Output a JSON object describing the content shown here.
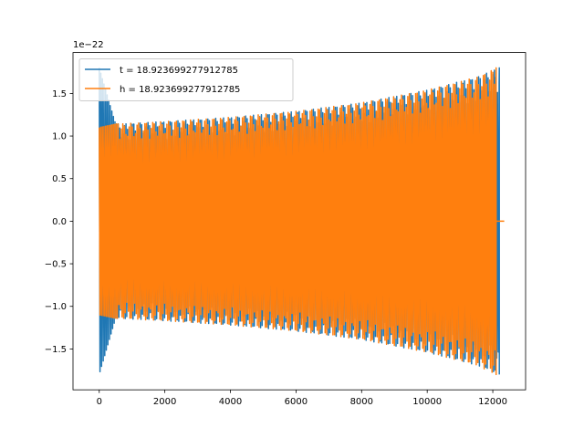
{
  "chart_data": {
    "type": "line",
    "title": "",
    "xlabel": "",
    "ylabel": "",
    "offset_label": "1e−22",
    "xlim": [
      -800,
      13000
    ],
    "ylim": [
      -1.98,
      1.98
    ],
    "xticks": [
      0,
      2000,
      4000,
      6000,
      8000,
      10000,
      12000
    ],
    "xtick_labels": [
      "0",
      "2000",
      "4000",
      "6000",
      "8000",
      "10000",
      "12000"
    ],
    "yticks": [
      -1.5,
      -1.0,
      -0.5,
      0.0,
      0.5,
      1.0,
      1.5
    ],
    "ytick_labels": [
      "−1.5",
      "−1.0",
      "−0.5",
      "0.0",
      "0.5",
      "1.0",
      "1.5"
    ],
    "grid": false,
    "legend_position": "upper-left",
    "series": [
      {
        "name": "t = 18.923699277912785",
        "color": "#1f77b4",
        "envelope_points": [
          [
            0,
            1.8
          ],
          [
            500,
            1.14
          ],
          [
            2000,
            1.17
          ],
          [
            4000,
            1.22
          ],
          [
            6000,
            1.29
          ],
          [
            8000,
            1.39
          ],
          [
            10000,
            1.54
          ],
          [
            11500,
            1.69
          ],
          [
            12200,
            1.8
          ]
        ],
        "x_start": 0,
        "x_end": 12200
      },
      {
        "name": "h = 18.923699277912785",
        "color": "#ff7f0e",
        "envelope_points": [
          [
            0,
            1.1
          ],
          [
            500,
            1.14
          ],
          [
            2000,
            1.17
          ],
          [
            4000,
            1.22
          ],
          [
            6000,
            1.29
          ],
          [
            8000,
            1.39
          ],
          [
            10000,
            1.54
          ],
          [
            11500,
            1.69
          ],
          [
            12100,
            1.8
          ]
        ],
        "x_start": 0,
        "x_end": 12100,
        "tail_end": 12350
      }
    ]
  }
}
